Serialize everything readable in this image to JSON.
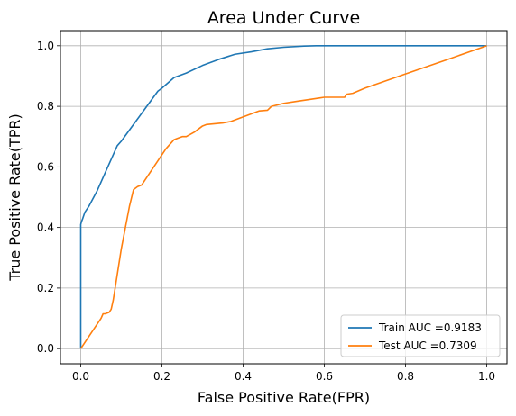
{
  "chart_data": {
    "type": "line",
    "title": "Area Under Curve",
    "xlabel": "False Positive Rate(FPR)",
    "ylabel": "True Positive Rate(TPR)",
    "xlim": [
      -0.05,
      1.05
    ],
    "ylim": [
      -0.05,
      1.05
    ],
    "xticks": [
      "0.0",
      "0.2",
      "0.4",
      "0.6",
      "0.8",
      "1.0"
    ],
    "yticks": [
      "0.0",
      "0.2",
      "0.4",
      "0.6",
      "0.8",
      "1.0"
    ],
    "grid": true,
    "legend_position": "lower-right",
    "series": [
      {
        "name": "Train AUC =0.9183",
        "color": "#1f77b4",
        "x": [
          0.0,
          0.0,
          0.0,
          0.0,
          0.002,
          0.005,
          0.01,
          0.02,
          0.04,
          0.06,
          0.08,
          0.09,
          0.1,
          0.13,
          0.16,
          0.19,
          0.2,
          0.23,
          0.26,
          0.3,
          0.34,
          0.38,
          0.42,
          0.46,
          0.5,
          0.55,
          0.58,
          1.0
        ],
        "y": [
          0.0,
          0.2,
          0.35,
          0.41,
          0.42,
          0.43,
          0.45,
          0.47,
          0.52,
          0.58,
          0.64,
          0.67,
          0.685,
          0.74,
          0.795,
          0.85,
          0.86,
          0.895,
          0.91,
          0.935,
          0.955,
          0.972,
          0.98,
          0.99,
          0.995,
          0.999,
          1.0,
          1.0
        ]
      },
      {
        "name": "Test AUC =0.7309",
        "color": "#ff7f0e",
        "x": [
          0.0,
          0.02,
          0.05,
          0.055,
          0.06,
          0.07,
          0.075,
          0.08,
          0.1,
          0.12,
          0.13,
          0.14,
          0.15,
          0.18,
          0.21,
          0.23,
          0.24,
          0.25,
          0.26,
          0.28,
          0.3,
          0.31,
          0.35,
          0.37,
          0.39,
          0.42,
          0.44,
          0.46,
          0.47,
          0.5,
          0.53,
          0.56,
          0.59,
          0.6,
          0.62,
          0.64,
          0.65,
          0.655,
          0.67,
          0.7,
          0.8,
          0.9,
          1.0
        ],
        "y": [
          0.0,
          0.04,
          0.1,
          0.115,
          0.115,
          0.12,
          0.13,
          0.16,
          0.33,
          0.47,
          0.525,
          0.535,
          0.54,
          0.6,
          0.66,
          0.69,
          0.695,
          0.7,
          0.7,
          0.715,
          0.735,
          0.74,
          0.745,
          0.75,
          0.76,
          0.775,
          0.785,
          0.787,
          0.8,
          0.81,
          0.816,
          0.822,
          0.828,
          0.83,
          0.83,
          0.83,
          0.83,
          0.84,
          0.843,
          0.86,
          0.907,
          0.953,
          1.0
        ]
      }
    ]
  }
}
